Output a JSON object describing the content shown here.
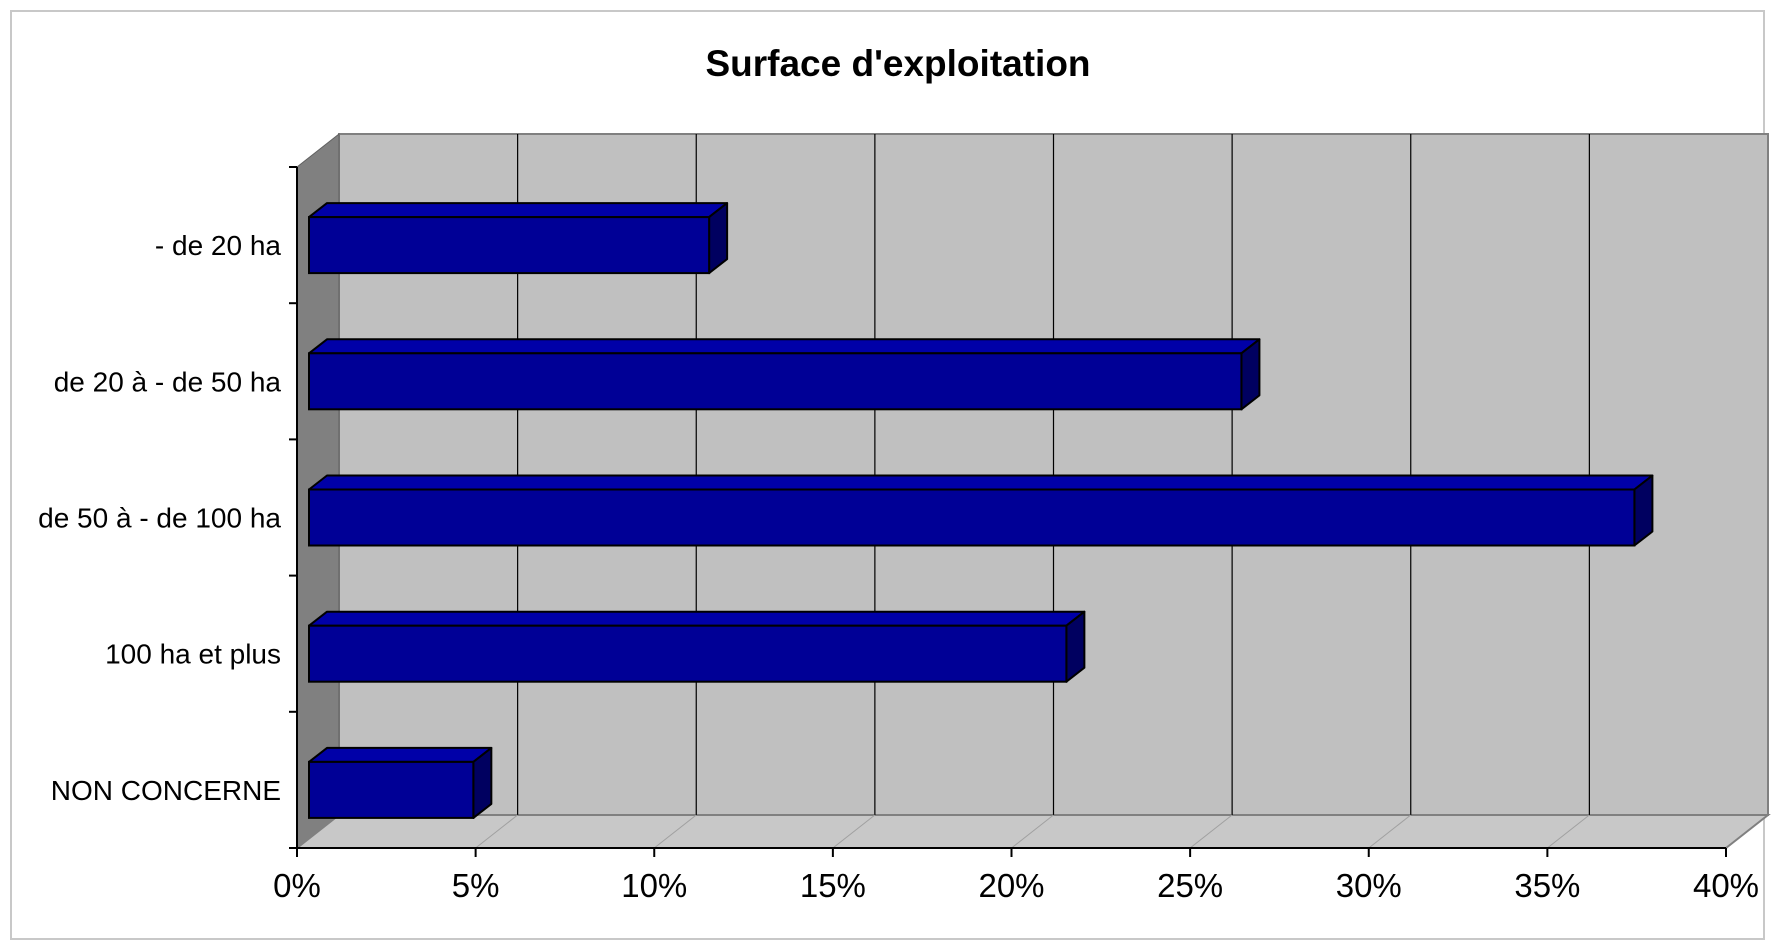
{
  "chart_data": {
    "type": "bar",
    "orientation": "horizontal",
    "three_d": true,
    "title": "Surface d'exploitation",
    "categories": [
      "- de 20 ha",
      "de 20 à - de 50 ha",
      "de 50 à - de 100 ha",
      "100 ha et plus",
      "NON CONCERNE"
    ],
    "values": [
      11.2,
      26.1,
      37.1,
      21.2,
      4.6
    ],
    "xlim": [
      0,
      40
    ],
    "x_ticks": [
      0,
      5,
      10,
      15,
      20,
      25,
      30,
      35,
      40
    ],
    "x_tick_labels": [
      "0%",
      "5%",
      "10%",
      "15%",
      "20%",
      "25%",
      "30%",
      "35%",
      "40%"
    ],
    "xlabel": "",
    "ylabel": "",
    "grid": true,
    "legend": false,
    "colors": {
      "bar_front": "#000096",
      "bar_top": "#0000a8",
      "bar_side": "#000060",
      "plot_back": "#c0c0c0",
      "plot_floor": "#c8c8c8",
      "plot_wall": "#808080",
      "gridline": "#000000"
    }
  }
}
